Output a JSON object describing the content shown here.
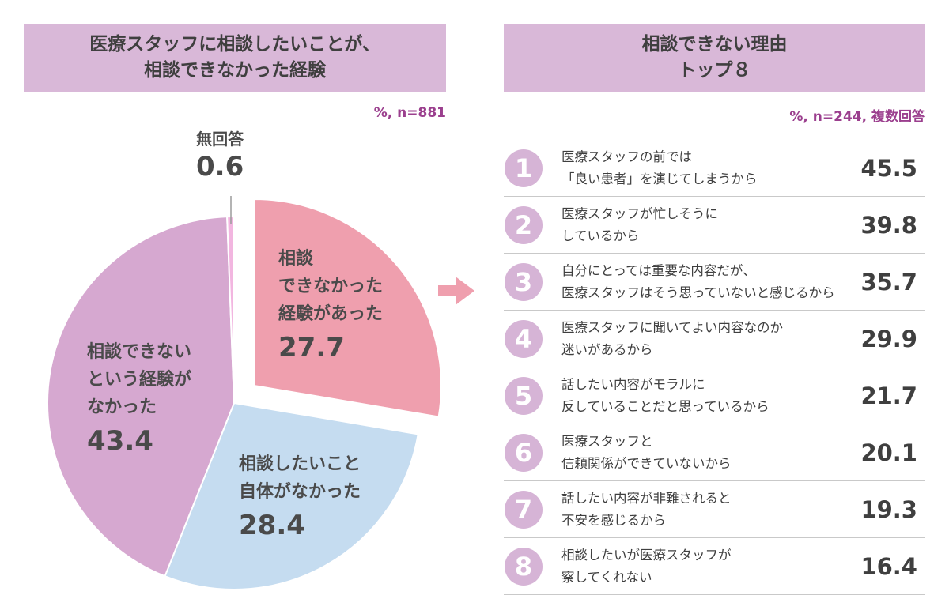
{
  "left": {
    "title_line1": "医療スタッフに相談したいことが、",
    "title_line2": "相談できなかった経験",
    "note": "%, n=881"
  },
  "right": {
    "title_line1": "相談できない理由",
    "title_line2": "トップ８",
    "note": "%, n=244, 複数回答"
  },
  "pie_labels": {
    "noans": "無回答",
    "yes": [
      "相談",
      "できなかった",
      "経験があった"
    ],
    "none": [
      "相談したいこと",
      "自体がなかった"
    ],
    "nonexp": [
      "相談できない",
      "という経験が",
      "なかった"
    ]
  },
  "colors": {
    "title_bg": "#d9b8d8",
    "note": "#9b3f8e",
    "yes": "#ef9fae",
    "none": "#c5dcf0",
    "nonexp": "#d6a8d0",
    "noans": "#f2b6e0",
    "arrow": "#ef9fae",
    "rank_circle": "#d6b4d6"
  },
  "chart_data": [
    {
      "type": "pie",
      "title": "医療スタッフに相談したいことが、相談できなかった経験",
      "note": "%, n=881",
      "slices": [
        {
          "label": "相談できなかった経験があった",
          "value": 27.7,
          "exploded": true
        },
        {
          "label": "相談したいこと自体がなかった",
          "value": 28.4
        },
        {
          "label": "相談できないという経験がなかった",
          "value": 43.4
        },
        {
          "label": "無回答",
          "value": 0.6
        }
      ]
    },
    {
      "type": "table",
      "title": "相談できない理由トップ８",
      "note": "%, n=244, 複数回答",
      "rows": [
        {
          "rank": "1",
          "lines": [
            "医療スタッフの前では",
            "「良い患者」を演じてしまうから"
          ],
          "value": "45.5"
        },
        {
          "rank": "2",
          "lines": [
            "医療スタッフが忙しそうに",
            "しているから"
          ],
          "value": "39.8"
        },
        {
          "rank": "3",
          "lines": [
            "自分にとっては重要な内容だが、",
            "医療スタッフはそう思っていないと感じるから"
          ],
          "value": "35.7"
        },
        {
          "rank": "4",
          "lines": [
            "医療スタッフに聞いてよい内容なのか",
            "迷いがあるから"
          ],
          "value": "29.9"
        },
        {
          "rank": "5",
          "lines": [
            "話したい内容がモラルに",
            "反していることだと思っているから"
          ],
          "value": "21.7"
        },
        {
          "rank": "6",
          "lines": [
            "医療スタッフと",
            "信頼関係ができていないから"
          ],
          "value": "20.1"
        },
        {
          "rank": "7",
          "lines": [
            "話したい内容が非難されると",
            "不安を感じるから"
          ],
          "value": "19.3"
        },
        {
          "rank": "8",
          "lines": [
            "相談したいが医療スタッフが",
            "察してくれない"
          ],
          "value": "16.4"
        }
      ]
    }
  ]
}
